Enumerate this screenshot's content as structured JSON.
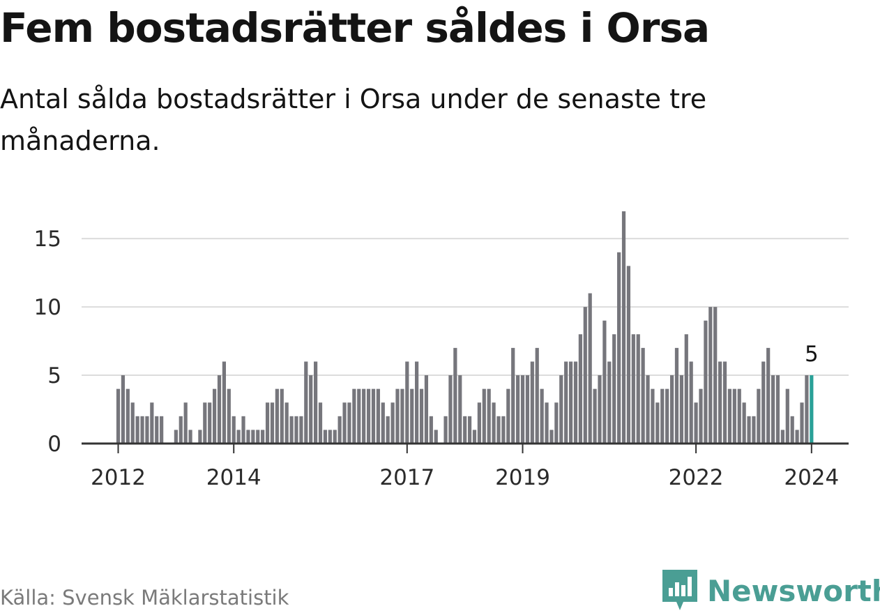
{
  "header": {
    "title": "Fem bostadsrätter såldes i Orsa",
    "subtitle": "Antal sålda bostadsrätter i Orsa under de senaste tre månaderna."
  },
  "footer": {
    "source": "Källa: Svensk Mäklarstatistik",
    "brand": "Newsworthy"
  },
  "colors": {
    "bar": "#76767c",
    "highlight": "#2aa198",
    "grid": "#dcdcdc",
    "axis": "#333333",
    "brand": "#4a9e94"
  },
  "chart_data": {
    "type": "bar",
    "title": "Fem bostadsrätter såldes i Orsa",
    "xlabel": "",
    "ylabel": "",
    "ylim": [
      0,
      17
    ],
    "yticks": [
      0,
      5,
      10,
      15
    ],
    "grid": true,
    "start": "2012-01",
    "xticks": [
      {
        "label": "2012",
        "index": 0
      },
      {
        "label": "2014",
        "index": 24
      },
      {
        "label": "2017",
        "index": 60
      },
      {
        "label": "2019",
        "index": 84
      },
      {
        "label": "2022",
        "index": 120
      },
      {
        "label": "2024",
        "index": 144
      }
    ],
    "values": [
      4,
      5,
      4,
      3,
      2,
      2,
      2,
      3,
      2,
      2,
      0,
      0,
      1,
      2,
      3,
      1,
      0,
      1,
      3,
      3,
      4,
      5,
      6,
      4,
      2,
      1,
      2,
      1,
      1,
      1,
      1,
      3,
      3,
      4,
      4,
      3,
      2,
      2,
      2,
      6,
      5,
      6,
      3,
      1,
      1,
      1,
      2,
      3,
      3,
      4,
      4,
      4,
      4,
      4,
      4,
      3,
      2,
      3,
      4,
      4,
      6,
      4,
      6,
      4,
      5,
      2,
      1,
      0,
      2,
      5,
      7,
      5,
      2,
      2,
      1,
      3,
      4,
      4,
      3,
      2,
      2,
      4,
      7,
      5,
      5,
      5,
      6,
      7,
      4,
      3,
      1,
      3,
      5,
      6,
      6,
      6,
      8,
      10,
      11,
      4,
      5,
      9,
      6,
      8,
      14,
      17,
      13,
      8,
      8,
      7,
      5,
      4,
      3,
      4,
      4,
      5,
      7,
      5,
      8,
      6,
      3,
      4,
      9,
      10,
      10,
      6,
      6,
      4,
      4,
      4,
      3,
      2,
      2,
      4,
      6,
      7,
      5,
      5,
      1,
      4,
      2,
      1,
      3,
      5,
      5
    ],
    "highlight": {
      "index": 144,
      "value": 5,
      "label": "5"
    }
  }
}
